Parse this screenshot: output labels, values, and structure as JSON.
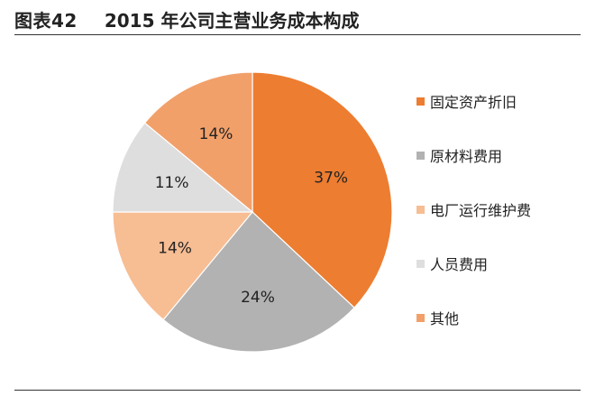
{
  "header": {
    "figure_number": "图表42",
    "title": "2015 年公司主营业务成本构成"
  },
  "chart_data": {
    "type": "pie",
    "title": "2015 年公司主营业务成本构成",
    "labels": [
      "固定资产折旧",
      "原材料费用",
      "电厂运行维护费",
      "人员费用",
      "其他"
    ],
    "values": [
      37,
      24,
      14,
      11,
      14
    ],
    "value_labels": [
      "37%",
      "24%",
      "14%",
      "11%",
      "14%"
    ],
    "colors": [
      "#ED7D31",
      "#B2B2B2",
      "#F7BD93",
      "#DEDEDE",
      "#F2A06A"
    ],
    "start_angle_deg": 0,
    "direction": "clockwise",
    "legend_position": "right"
  }
}
